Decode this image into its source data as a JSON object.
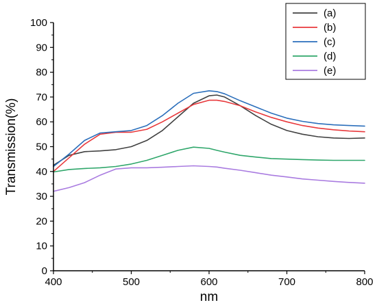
{
  "chart_data": {
    "type": "line",
    "xlabel": "nm",
    "ylabel": "Transmission(%)",
    "xlim": [
      400,
      800
    ],
    "ylim": [
      0,
      100
    ],
    "x_ticks": [
      400,
      500,
      600,
      700,
      800
    ],
    "y_ticks": [
      0,
      10,
      20,
      30,
      40,
      50,
      60,
      70,
      80,
      90,
      100
    ],
    "grid": false,
    "legend_position": "top-right",
    "x": [
      400,
      420,
      440,
      460,
      480,
      500,
      520,
      540,
      560,
      580,
      600,
      610,
      620,
      640,
      660,
      680,
      700,
      720,
      740,
      760,
      780,
      800
    ],
    "series": [
      {
        "name": "(a)",
        "color": "#404040",
        "values": [
          42.5,
          46.5,
          48.0,
          48.3,
          48.8,
          50.0,
          52.5,
          56.5,
          62.0,
          67.5,
          70.5,
          70.8,
          70.0,
          66.5,
          62.5,
          59.0,
          56.5,
          55.0,
          54.0,
          53.5,
          53.3,
          53.5
        ]
      },
      {
        "name": "(b)",
        "color": "#e8383b",
        "values": [
          40.0,
          45.5,
          51.0,
          55.0,
          55.8,
          55.8,
          57.0,
          60.0,
          63.5,
          67.0,
          68.7,
          68.7,
          68.2,
          66.5,
          64.0,
          61.8,
          60.0,
          58.5,
          57.5,
          56.8,
          56.3,
          56.0
        ]
      },
      {
        "name": "(c)",
        "color": "#2a6ebb",
        "values": [
          42.0,
          47.0,
          52.5,
          55.5,
          56.0,
          56.5,
          58.5,
          62.5,
          67.5,
          71.5,
          72.5,
          72.2,
          71.3,
          68.5,
          66.0,
          63.5,
          61.5,
          60.2,
          59.3,
          58.8,
          58.5,
          58.3
        ]
      },
      {
        "name": "(d)",
        "color": "#2ea66a",
        "values": [
          39.8,
          40.8,
          41.2,
          41.5,
          42.0,
          43.0,
          44.5,
          46.5,
          48.5,
          49.8,
          49.3,
          48.5,
          47.8,
          46.5,
          45.8,
          45.2,
          45.0,
          44.8,
          44.6,
          44.5,
          44.5,
          44.5
        ]
      },
      {
        "name": "(e)",
        "color": "#a97be0",
        "values": [
          32.0,
          33.5,
          35.5,
          38.5,
          41.0,
          41.5,
          41.5,
          41.7,
          42.0,
          42.3,
          42.0,
          41.8,
          41.3,
          40.5,
          39.5,
          38.5,
          37.8,
          37.0,
          36.5,
          36.0,
          35.6,
          35.3
        ]
      }
    ]
  }
}
